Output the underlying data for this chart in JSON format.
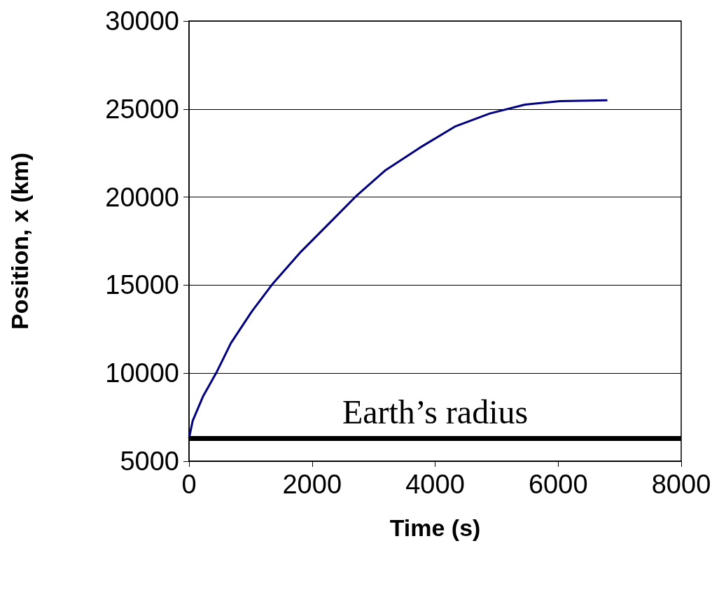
{
  "chart_data": {
    "type": "line",
    "xlabel": "Time (s)",
    "ylabel": "Position, x (km)",
    "x": [
      0,
      60,
      230,
      455,
      680,
      1020,
      1365,
      1820,
      2275,
      2730,
      3185,
      3750,
      4320,
      4890,
      5460,
      6030,
      6800
    ],
    "series": [
      {
        "color": "#000080",
        "values": [
          6300,
          7300,
          8700,
          10100,
          11700,
          13500,
          15100,
          16900,
          18500,
          20100,
          21500,
          22800,
          24000,
          24750,
          25250,
          25450,
          25500
        ]
      }
    ],
    "xlim": [
      0,
      8000
    ],
    "xticks": [
      0,
      2000,
      4000,
      6000,
      8000
    ],
    "ylim": [
      5000,
      30000
    ],
    "yticks": [
      5000,
      10000,
      15000,
      20000,
      25000,
      30000
    ],
    "grid": "y",
    "marker": "none",
    "line_style": "solid",
    "ref_lines": [
      {
        "axis": "y",
        "value": 6300,
        "label": "Earth’s radius",
        "color": "#000000"
      }
    ]
  }
}
